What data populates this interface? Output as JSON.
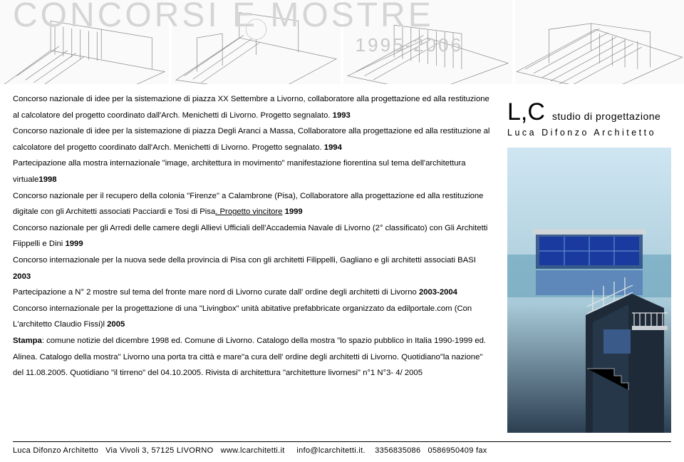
{
  "banner": {
    "title": "CONCORSI E MOSTRE",
    "years": "1995-2006",
    "background": "#fafafa",
    "title_color": "#d5d5d5",
    "years_color": "#c9c9c9"
  },
  "logo": {
    "lc": "L,C",
    "sub1": "studio di progettazione",
    "line2": "Luca Difonzo Architetto"
  },
  "render": {
    "sky_top": "#cfe6f2",
    "sky_mid": "#a7c9d8",
    "building_dark": "#2c3f52",
    "glass_blue": "#1a3aa0",
    "rail_color": "#e8e8e8"
  },
  "body": {
    "segments": [
      {
        "t": "Concorso nazionale di idee per la sistemazione di piazza XX Settembre a Livorno, collaboratore alla progettazione ed alla restituzione al calcolatore del progetto coordinato dall'Arch. Menichetti di Livorno. Progetto segnalato. "
      },
      {
        "t": "1993",
        "bold": true,
        "break_after": true
      },
      {
        "t": "Concorso nazionale di idee per la sistemazione di piazza Degli Aranci a Massa, Collaboratore alla progettazione ed alla restituzione al calcolatore del progetto coordinato dall'Arch. Menichetti di Livorno. Progetto segnalato. "
      },
      {
        "t": "1994",
        "bold": true,
        "break_after": true
      },
      {
        "t": "Partecipazione alla mostra internazionale \"image, architettura in movimento\" manifestazione fiorentina sul tema dell'architettura virtuale"
      },
      {
        "t": "1998",
        "bold": true,
        "break_after": true
      },
      {
        "t": "Concorso nazionale per il recupero della colonia \"Firenze\" a Calambrone (Pisa), Collaboratore alla progettazione ed alla restituzione digitale con gli Architetti associati Pacciardi e Tosi di Pisa"
      },
      {
        "t": ". Progetto vincitore",
        "underline": true
      },
      {
        "t": " "
      },
      {
        "t": "1999",
        "bold": true,
        "break_after": true
      },
      {
        "t": "Concorso nazionale per gli Arredi delle camere degli Allievi Ufficiali dell'Accademia Navale di Livorno (2° classificato) con Gli Architetti Fiippelli e Dini "
      },
      {
        "t": "1999",
        "bold": true,
        "break_after": true
      },
      {
        "t": "Concorso internazionale per la nuova sede della provincia di Pisa con gli architetti Filippelli, Gagliano e gli architetti associati BASI "
      },
      {
        "t": "2003",
        "bold": true,
        "break_after": true
      },
      {
        "t": "Partecipazione  a  N° 2 mostre sul tema del fronte mare nord di Livorno curate dall' ordine degli architetti di Livorno "
      },
      {
        "t": "2003-2004",
        "bold": true,
        "break_after": true
      },
      {
        "t": "Concorso internazionale per la progettazione di una \"Livingbox\" unità abitative prefabbricate organizzato da edilportale.com  (Con L'architetto Claudio Fissi)l "
      },
      {
        "t": "2005",
        "bold": true,
        "break_after": true
      },
      {
        "t": "Stampa",
        "bold": true
      },
      {
        "t": ": comune notizie del dicembre 1998 ed. Comune di Livorno. Catalogo della mostra \"lo spazio pubblico in Italia 1990-1999 ed. Alinea. Catalogo della mostra\" Livorno una porta tra città e mare\"a cura dell' ordine degli architetti di Livorno. Quotidiano\"la nazione\" del 11.08.2005. Quotidiano \"il tirreno\" del 04.10.2005. Rivista di architettura \"architetture livornesi\" n°1 N°3- 4/ 2005"
      }
    ]
  },
  "footer": {
    "name": "Luca Difonzo Architetto",
    "address": "Via Vivoli 3, 57125 LIVORNO",
    "web": "www.lcarchitetti.it",
    "email": "info@lcarchitetti.it.",
    "phone": "3356835086",
    "fax": "0586950409 fax"
  },
  "sketch": {
    "line_color": "#888888",
    "line_width": 0.6
  }
}
